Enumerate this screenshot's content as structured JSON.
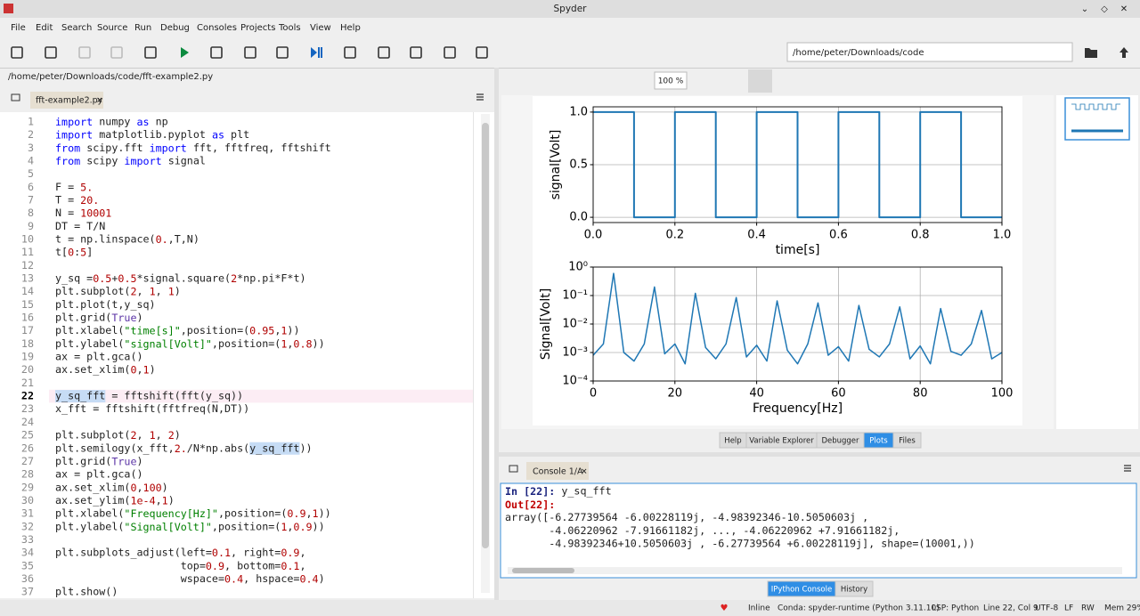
{
  "window": {
    "title": "Spyder"
  },
  "menu": [
    "File",
    "Edit",
    "Search",
    "Source",
    "Run",
    "Debug",
    "Consoles",
    "Projects",
    "Tools",
    "View",
    "Help"
  ],
  "path_field": "/home/peter/Downloads/code",
  "editor": {
    "file_path": "/home/peter/Downloads/code/fft-example2.py",
    "tab": "fft-example2.py",
    "current_line": 22,
    "lines": [
      {
        "n": 1,
        "code": "import numpy as np"
      },
      {
        "n": 2,
        "code": "import matplotlib.pyplot as plt"
      },
      {
        "n": 3,
        "code": "from scipy.fft import fft, fftfreq, fftshift"
      },
      {
        "n": 4,
        "code": "from scipy import signal"
      },
      {
        "n": 5
      },
      {
        "n": 6,
        "code": "F = 5."
      },
      {
        "n": 7,
        "code": "T = 20."
      },
      {
        "n": 8,
        "code": "N = 10001"
      },
      {
        "n": 9,
        "code": "DT = T/N"
      },
      {
        "n": 10,
        "code": "t = np.linspace(0.,T,N)"
      },
      {
        "n": 11,
        "code": "t[0:5]"
      },
      {
        "n": 12
      },
      {
        "n": 13,
        "code": "y_sq =0.5+0.5*signal.square(2*np.pi*F*t)"
      },
      {
        "n": 14,
        "code": "plt.subplot(2, 1, 1)"
      },
      {
        "n": 15,
        "code": "plt.plot(t,y_sq)"
      },
      {
        "n": 16,
        "code": "plt.grid(True)"
      },
      {
        "n": 17,
        "code": "plt.xlabel(\"time[s]\",position=(0.95,1))"
      },
      {
        "n": 18,
        "code": "plt.ylabel(\"signal[Volt]\",position=(1,0.8))"
      },
      {
        "n": 19,
        "code": "ax = plt.gca()"
      },
      {
        "n": 20,
        "code": "ax.set_xlim(0,1)"
      },
      {
        "n": 21
      },
      {
        "n": 22,
        "code": "y_sq_fft = fftshift(fft(y_sq))"
      },
      {
        "n": 23,
        "code": "x_fft = fftshift(fftfreq(N,DT))"
      },
      {
        "n": 24
      },
      {
        "n": 25,
        "code": "plt.subplot(2, 1, 2)"
      },
      {
        "n": 26,
        "code": "plt.semilogy(x_fft,2./N*np.abs(y_sq_fft))"
      },
      {
        "n": 27,
        "code": "plt.grid(True)"
      },
      {
        "n": 28,
        "code": "ax = plt.gca()"
      },
      {
        "n": 29,
        "code": "ax.set_xlim(0,100)"
      },
      {
        "n": 30,
        "code": "ax.set_ylim(1e-4,1)"
      },
      {
        "n": 31,
        "code": "plt.xlabel(\"Frequency[Hz]\",position=(0.9,1))"
      },
      {
        "n": 32,
        "code": "plt.ylabel(\"Signal[Volt]\",position=(1,0.9))"
      },
      {
        "n": 33
      },
      {
        "n": 34,
        "code": "plt.subplots_adjust(left=0.1, right=0.9,"
      },
      {
        "n": 35,
        "code": "                    top=0.9, bottom=0.1,"
      },
      {
        "n": 36,
        "code": "                    wspace=0.4, hspace=0.4)"
      },
      {
        "n": 37,
        "code": "plt.show()"
      }
    ]
  },
  "plot_toolbar": {
    "zoom": "100 %"
  },
  "chart_data": [
    {
      "type": "line",
      "xlabel": "time[s]",
      "ylabel": "signal[Volt]",
      "color": "#1f77b4",
      "grid": true,
      "x": [
        0,
        0.1,
        0.1,
        0.2,
        0.2,
        0.3,
        0.3,
        0.4,
        0.4,
        0.5,
        0.5,
        0.6,
        0.6,
        0.7,
        0.7,
        0.8,
        0.8,
        0.9,
        0.9,
        1.0
      ],
      "values": [
        1,
        1,
        0,
        0,
        1,
        1,
        0,
        0,
        1,
        1,
        0,
        0,
        1,
        1,
        0,
        0,
        1,
        1,
        0,
        0
      ],
      "xlim": [
        0,
        1
      ],
      "ylim": [
        -0.05,
        1.05
      ],
      "xticks": [
        {
          "value": 0,
          "label": "0.0"
        },
        0.2,
        0.4,
        0.6,
        0.8,
        {
          "value": 1,
          "label": "1.0"
        }
      ],
      "yticks": [
        {
          "value": 0,
          "label": "0.0"
        },
        0.5,
        {
          "value": 1,
          "label": "1.0"
        }
      ]
    },
    {
      "type": "line",
      "xlabel": "Frequency[Hz]",
      "ylabel": "Signal[Volt]",
      "color": "#1f77b4",
      "grid": true,
      "yscale": "log",
      "x": [
        0,
        2.5,
        5,
        7.5,
        10,
        12.5,
        15,
        17.5,
        20,
        22.5,
        25,
        27.5,
        30,
        32.5,
        35,
        37.5,
        40,
        42.5,
        45,
        47.5,
        50,
        52.5,
        55,
        57.5,
        60,
        62.5,
        65,
        67.5,
        70,
        72.5,
        75,
        77.5,
        80,
        82.5,
        85,
        87.5,
        90,
        92.5,
        95,
        97.5,
        100
      ],
      "values": [
        0.0008,
        0.002,
        0.6,
        0.001,
        0.0005,
        0.002,
        0.2,
        0.0009,
        0.002,
        0.0004,
        0.12,
        0.0015,
        0.0006,
        0.002,
        0.085,
        0.0007,
        0.0018,
        0.0005,
        0.065,
        0.0012,
        0.0004,
        0.002,
        0.055,
        0.0008,
        0.0016,
        0.0005,
        0.045,
        0.0013,
        0.0007,
        0.002,
        0.04,
        0.0006,
        0.0017,
        0.0004,
        0.035,
        0.0011,
        0.0008,
        0.002,
        0.03,
        0.0006,
        0.001
      ],
      "xlim": [
        0,
        100
      ],
      "ylim": [
        0.0001,
        1
      ],
      "xticks": [
        0,
        20,
        40,
        60,
        80,
        100
      ],
      "yticks": [
        {
          "value": 0.0001,
          "label": "10⁻⁴"
        },
        {
          "value": 0.001,
          "label": "10⁻³"
        },
        {
          "value": 0.01,
          "label": "10⁻²"
        },
        {
          "value": 0.1,
          "label": "10⁻¹"
        },
        {
          "value": 1,
          "label": "10⁰"
        }
      ]
    }
  ],
  "pane_tabs": {
    "items": [
      "Help",
      "Variable Explorer",
      "Debugger",
      "Plots",
      "Files"
    ],
    "active": 3
  },
  "console": {
    "tab": "Console 1/A",
    "lines": [
      "In [22]: y_sq_fft",
      "Out[22]:",
      "array([-6.27739564 -6.00228119j, -4.98392346-10.5050603j ,",
      "       -4.06220962 -7.91661182j, ..., -4.06220962 +7.91661182j,",
      "       -4.98392346+10.5050603j , -6.27739564 +6.00228119j], shape=(10001,))"
    ],
    "tabs": {
      "items": [
        "IPython Console",
        "History"
      ],
      "active": 0
    }
  },
  "status": [
    "Inline",
    "Conda: spyder-runtime (Python 3.11.10)",
    "LSP: Python",
    "Line 22, Col 9",
    "UTF-8",
    "LF",
    "RW",
    "Mem 29%"
  ]
}
